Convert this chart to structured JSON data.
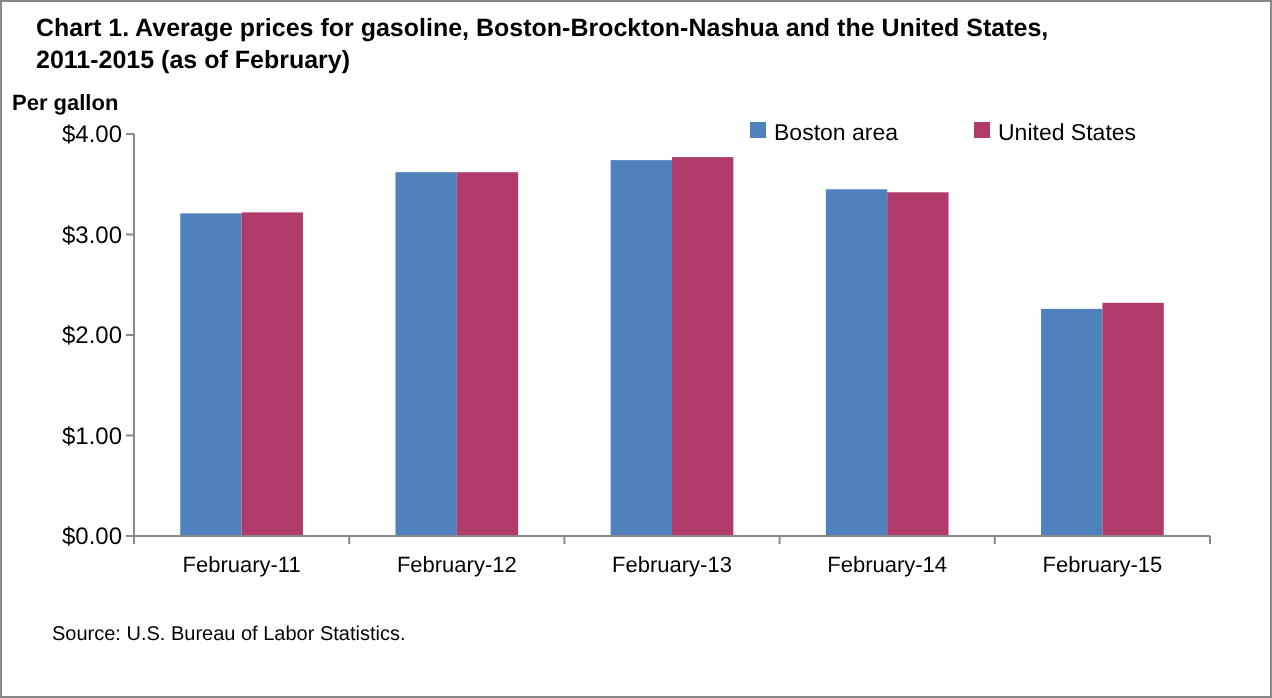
{
  "chart_data": {
    "type": "bar",
    "title": "Chart 1. Average prices for gasoline, Boston-Brockton-Nashua  and the United States, 2011-2015 (as of February)",
    "ylabel": "Per gallon",
    "categories": [
      "February-11",
      "February-12",
      "February-13",
      "February-14",
      "February-15"
    ],
    "series": [
      {
        "name": "Boston area",
        "color": "#4f81bd",
        "values": [
          3.21,
          3.62,
          3.74,
          3.45,
          2.26
        ]
      },
      {
        "name": "United States",
        "color": "#b03a6a",
        "values": [
          3.22,
          3.62,
          3.77,
          3.42,
          2.32
        ]
      }
    ],
    "ylim": [
      0,
      4
    ],
    "yticks": [
      {
        "value": 0,
        "label": "$0.00"
      },
      {
        "value": 1,
        "label": "$1.00"
      },
      {
        "value": 2,
        "label": "$2.00"
      },
      {
        "value": 3,
        "label": "$3.00"
      },
      {
        "value": 4,
        "label": "$4.00"
      }
    ],
    "grid": false,
    "legend": "top right",
    "annotations": [
      "Source: U.S. Bureau of Labor Statistics."
    ]
  }
}
